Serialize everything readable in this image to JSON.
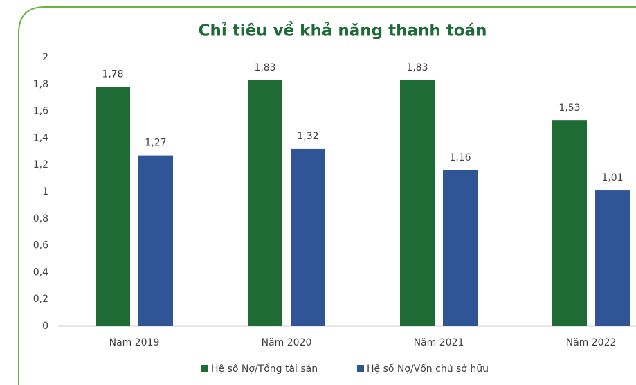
{
  "chart_data": {
    "type": "bar",
    "title": "Chỉ tiêu về khả năng thanh toán",
    "categories": [
      "Năm 2019",
      "Năm 2020",
      "Năm 2021",
      "Năm 2022"
    ],
    "series": [
      {
        "name": "Hệ số Nợ/Tổng tài sản",
        "color": "#1e6b35",
        "values": [
          1.78,
          1.83,
          1.83,
          1.53
        ],
        "value_labels": [
          "1,78",
          "1,83",
          "1,83",
          "1,53"
        ]
      },
      {
        "name": "Hệ số Nợ/Vốn chủ sở hữu",
        "color": "#2f5597",
        "values": [
          1.27,
          1.32,
          1.16,
          1.01
        ],
        "value_labels": [
          "1,27",
          "1,32",
          "1,16",
          "1,01"
        ]
      }
    ],
    "ylim": [
      0,
      2
    ],
    "yticks": [
      0,
      {
        "value": 0.2,
        "label": "0,2"
      },
      {
        "value": 0.4,
        "label": "0,4"
      },
      {
        "value": 0.6,
        "label": "0,6"
      },
      {
        "value": 0.8,
        "label": "0,8"
      },
      1,
      {
        "value": 1.2,
        "label": "1,2"
      },
      {
        "value": 1.4,
        "label": "1,4"
      },
      {
        "value": 1.6,
        "label": "1,6"
      },
      {
        "value": 1.8,
        "label": "1,8"
      },
      2
    ],
    "grid": false,
    "legend": "bottom"
  }
}
